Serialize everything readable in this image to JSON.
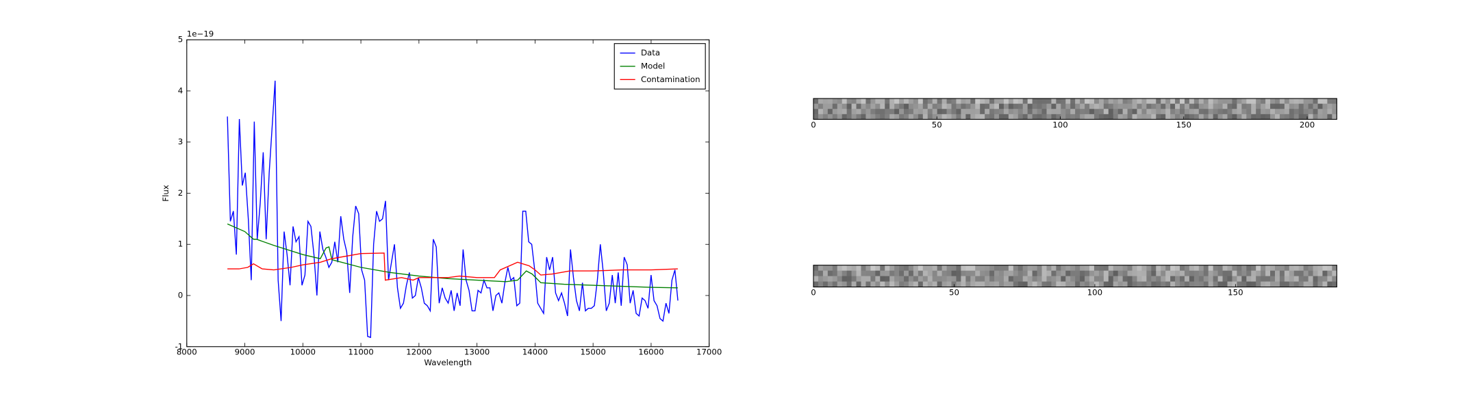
{
  "chart_data": [
    {
      "type": "line",
      "xlabel": "Wavelength",
      "ylabel": "Flux",
      "offset_label": "1e−19",
      "xlim": [
        8000,
        17000
      ],
      "xticks": [
        8000,
        9000,
        10000,
        11000,
        12000,
        13000,
        14000,
        15000,
        16000,
        17000
      ],
      "ylim": [
        -1,
        5
      ],
      "yticks": [
        -1,
        0,
        1,
        2,
        3,
        4,
        5
      ],
      "legend": "upper right",
      "x": [
        8700,
        8751,
        8803,
        8854,
        8906,
        8957,
        9008,
        9060,
        9111,
        9163,
        9214,
        9265,
        9317,
        9368,
        9420,
        9471,
        9522,
        9574,
        9625,
        9677,
        9728,
        9779,
        9831,
        9882,
        9934,
        9985,
        10036,
        10088,
        10139,
        10191,
        10242,
        10293,
        10345,
        10396,
        10448,
        10499,
        10550,
        10602,
        10653,
        10705,
        10756,
        10807,
        10859,
        10910,
        10962,
        11013,
        11064,
        11116,
        11167,
        11219,
        11270,
        11321,
        11373,
        11424,
        11476,
        11527,
        11578,
        11630,
        11681,
        11733,
        11784,
        11835,
        11887,
        11938,
        11990,
        12041,
        12092,
        12144,
        12195,
        12247,
        12298,
        12349,
        12401,
        12452,
        12504,
        12555,
        12606,
        12658,
        12709,
        12761,
        12812,
        12863,
        12915,
        12966,
        13018,
        13069,
        13120,
        13172,
        13223,
        13275,
        13326,
        13377,
        13429,
        13480,
        13532,
        13583,
        13634,
        13686,
        13737,
        13789,
        13840,
        13891,
        13943,
        13994,
        14046,
        14097,
        14148,
        14200,
        14251,
        14303,
        14354,
        14405,
        14457,
        14508,
        14560,
        14611,
        14662,
        14714,
        14765,
        14817,
        14868,
        14919,
        14971,
        15022,
        15074,
        15125,
        15176,
        15228,
        15279,
        15331,
        15382,
        15433,
        15485,
        15536,
        15588,
        15639,
        15690,
        15742,
        15793,
        15845,
        15896,
        15947,
        15999,
        16050,
        16102,
        16153,
        16204,
        16256,
        16307,
        16359,
        16410,
        16461
      ],
      "series": [
        {
          "name": "Data",
          "color": "#0000ff",
          "values": [
            3.5,
            1.45,
            1.65,
            0.8,
            3.45,
            2.15,
            2.4,
            1.5,
            0.3,
            3.4,
            1.1,
            1.8,
            2.8,
            1.1,
            2.4,
            3.3,
            4.2,
            0.3,
            -0.5,
            1.25,
            0.8,
            0.2,
            1.35,
            1.05,
            1.15,
            0.2,
            0.4,
            1.45,
            1.35,
            0.8,
            0.0,
            1.25,
            0.9,
            0.75,
            0.55,
            0.65,
            1.05,
            0.65,
            1.55,
            1.1,
            0.85,
            0.05,
            1.15,
            1.75,
            1.6,
            0.5,
            0.3,
            -0.8,
            -0.82,
            1.0,
            1.65,
            1.45,
            1.5,
            1.85,
            0.3,
            0.65,
            1.0,
            0.15,
            -0.25,
            -0.15,
            0.2,
            0.45,
            -0.05,
            0.0,
            0.35,
            0.15,
            -0.15,
            -0.2,
            -0.3,
            1.1,
            0.95,
            -0.15,
            0.15,
            -0.05,
            -0.15,
            0.1,
            -0.3,
            0.05,
            -0.2,
            0.9,
            0.3,
            0.1,
            -0.3,
            -0.3,
            0.1,
            0.05,
            0.3,
            0.15,
            0.15,
            -0.3,
            0.0,
            0.05,
            -0.15,
            0.25,
            0.55,
            0.3,
            0.35,
            -0.2,
            -0.15,
            1.65,
            1.65,
            1.05,
            1.0,
            0.5,
            -0.15,
            -0.25,
            -0.35,
            0.75,
            0.5,
            0.75,
            0.05,
            -0.1,
            0.05,
            -0.15,
            -0.4,
            0.9,
            0.35,
            -0.1,
            -0.3,
            0.25,
            -0.3,
            -0.25,
            -0.25,
            -0.2,
            0.3,
            1.0,
            0.45,
            -0.3,
            -0.15,
            0.4,
            -0.15,
            0.45,
            -0.2,
            0.75,
            0.6,
            -0.15,
            0.1,
            -0.35,
            -0.4,
            -0.05,
            -0.1,
            -0.25,
            0.4,
            -0.1,
            -0.2,
            -0.45,
            -0.5,
            -0.15,
            -0.35,
            0.3,
            0.5,
            -0.1
          ]
        },
        {
          "name": "Model",
          "color": "#008000",
          "x": [
            8700,
            9000,
            9150,
            9200,
            9500,
            10000,
            10300,
            10400,
            10450,
            10500,
            11000,
            11500,
            12000,
            12500,
            13000,
            13500,
            13700,
            13850,
            13950,
            14100,
            14500,
            15000,
            15500,
            16000,
            16460
          ],
          "values": [
            1.4,
            1.25,
            1.1,
            1.1,
            0.98,
            0.8,
            0.72,
            0.93,
            0.95,
            0.7,
            0.55,
            0.45,
            0.38,
            0.33,
            0.3,
            0.27,
            0.3,
            0.48,
            0.42,
            0.25,
            0.22,
            0.2,
            0.18,
            0.16,
            0.15
          ]
        },
        {
          "name": "Contamination",
          "color": "#ff0000",
          "x": [
            8700,
            8900,
            9050,
            9150,
            9300,
            9500,
            9800,
            10000,
            10300,
            10500,
            10800,
            11000,
            11400,
            11420,
            11700,
            11900,
            12000,
            12500,
            12700,
            13000,
            13300,
            13400,
            13700,
            13900,
            14000,
            14100,
            14300,
            14600,
            15000,
            15500,
            16000,
            16460
          ],
          "values": [
            0.52,
            0.52,
            0.55,
            0.62,
            0.52,
            0.5,
            0.55,
            0.6,
            0.65,
            0.72,
            0.78,
            0.82,
            0.83,
            0.3,
            0.35,
            0.3,
            0.35,
            0.35,
            0.38,
            0.35,
            0.35,
            0.5,
            0.65,
            0.58,
            0.5,
            0.4,
            0.42,
            0.48,
            0.48,
            0.5,
            0.5,
            0.52
          ]
        }
      ]
    },
    {
      "type": "image",
      "xlim": [
        0,
        212
      ],
      "xticks": [
        0,
        50,
        100,
        150,
        200
      ]
    },
    {
      "type": "image",
      "xlim": [
        0,
        186
      ],
      "xticks": [
        0,
        50,
        100,
        150
      ]
    }
  ]
}
